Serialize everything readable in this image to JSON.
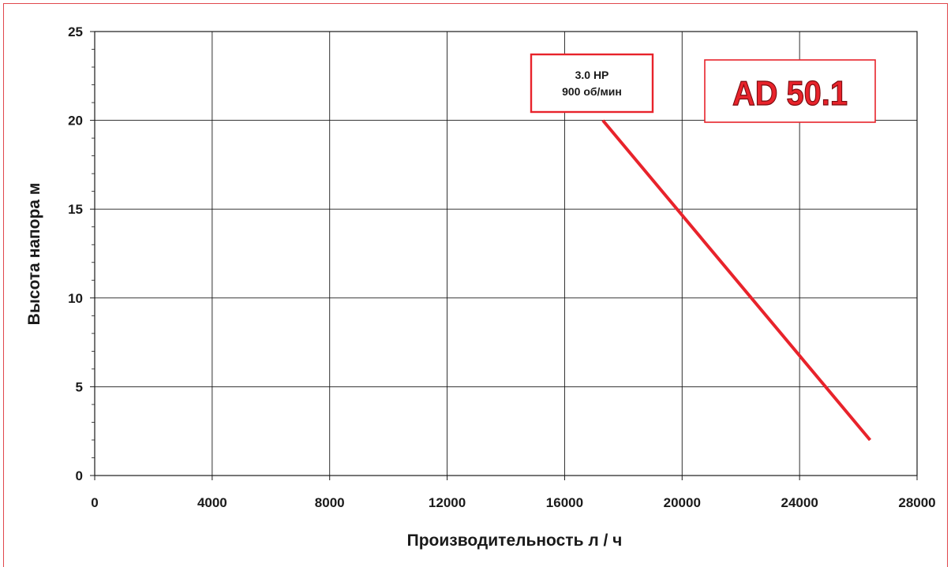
{
  "chart_data": {
    "type": "line",
    "xlabel": "Производительность л / ч",
    "ylabel": "Высота напора м",
    "xlim": [
      0,
      28000
    ],
    "ylim": [
      0,
      25
    ],
    "x_ticks": [
      "0",
      "4000",
      "8000",
      "12000",
      "16000",
      "20000",
      "24000",
      "28000"
    ],
    "y_ticks": [
      "0",
      "5",
      "10",
      "15",
      "20",
      "25"
    ],
    "grid": true,
    "series": [
      {
        "x": [
          17300,
          26400
        ],
        "y": [
          20,
          2
        ],
        "color": "#e8232b"
      }
    ],
    "annotations": {
      "curve_label": [
        "3.0 HP",
        "900 об/мин"
      ],
      "model": "AD 50.1"
    }
  },
  "colors": {
    "frame": "#e0474c",
    "curve": "#e8232b",
    "grid": "#1a1a1a"
  }
}
